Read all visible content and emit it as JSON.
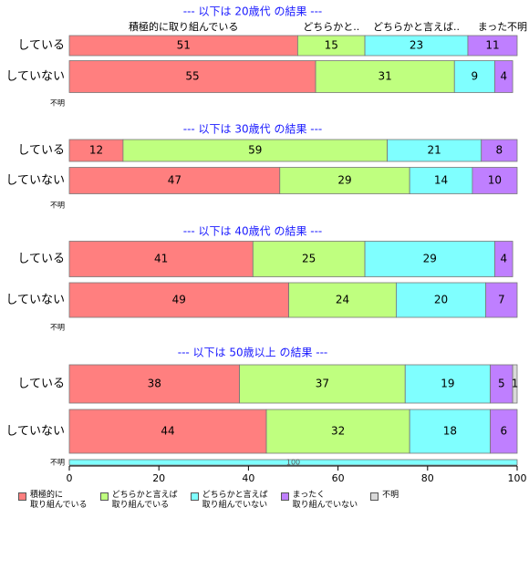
{
  "chart_data": {
    "type": "stacked-bar-panels",
    "series": [
      {
        "name": "積極的に\n取り組んでいる",
        "color": "#ff7f7f"
      },
      {
        "name": "どちらかと言えば\n取り組んでいる",
        "color": "#bfff7f"
      },
      {
        "name": "どちらかと言えば\n取り組んでいない",
        "color": "#7fffff"
      },
      {
        "name": "まったく\n取り組んでいない",
        "color": "#bf7fff"
      },
      {
        "name": "不明",
        "color": "#d9d9d9"
      }
    ],
    "column_labels": [
      "積極的に取り組んでいる",
      "どちらかと..",
      "どちらかと言えば..",
      "まった",
      "不明"
    ],
    "xlim": [
      0,
      100
    ],
    "xticks": [
      0,
      20,
      40,
      60,
      80,
      100
    ],
    "panels": [
      {
        "title": "--- 以下は 20歳代 の結果 ---",
        "categories": [
          "している",
          "していない",
          "不明"
        ],
        "series": [
          {
            "values": [
              51,
              55,
              null
            ]
          },
          {
            "values": [
              15,
              31,
              null
            ]
          },
          {
            "values": [
              23,
              9,
              null
            ]
          },
          {
            "values": [
              11,
              4,
              null
            ]
          },
          {
            "values": [
              null,
              null,
              null
            ]
          }
        ]
      },
      {
        "title": "--- 以下は 30歳代 の結果 ---",
        "categories": [
          "している",
          "していない",
          "不明"
        ],
        "series": [
          {
            "values": [
              12,
              47,
              null
            ]
          },
          {
            "values": [
              59,
              29,
              null
            ]
          },
          {
            "values": [
              21,
              14,
              null
            ]
          },
          {
            "values": [
              8,
              10,
              null
            ]
          },
          {
            "values": [
              null,
              null,
              null
            ]
          }
        ]
      },
      {
        "title": "--- 以下は 40歳代 の結果 ---",
        "categories": [
          "している",
          "していない",
          "不明"
        ],
        "series": [
          {
            "values": [
              41,
              49,
              null
            ]
          },
          {
            "values": [
              25,
              24,
              null
            ]
          },
          {
            "values": [
              29,
              20,
              null
            ]
          },
          {
            "values": [
              4,
              7,
              null
            ]
          },
          {
            "values": [
              null,
              null,
              null
            ]
          }
        ]
      },
      {
        "title": "--- 以下は 50歳以上 の結果 ---",
        "categories": [
          "している",
          "していない",
          "不明"
        ],
        "series": [
          {
            "values": [
              38,
              44,
              null
            ]
          },
          {
            "values": [
              37,
              32,
              null
            ]
          },
          {
            "values": [
              19,
              18,
              100
            ]
          },
          {
            "values": [
              5,
              6,
              null
            ]
          },
          {
            "values": [
              1,
              null,
              null
            ]
          }
        ]
      }
    ]
  }
}
